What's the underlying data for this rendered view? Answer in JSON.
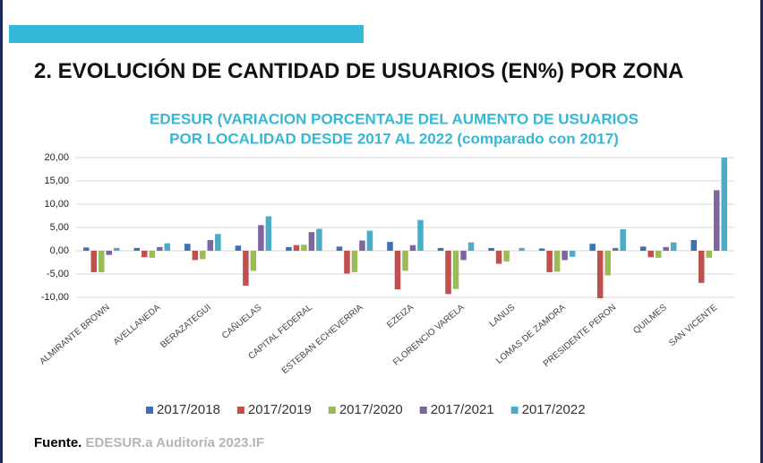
{
  "header": {
    "title": "2. EVOLUCIÓN DE CANTIDAD DE USUARIOS (EN%) POR ZONA"
  },
  "chart_data": {
    "type": "bar",
    "title_lines": [
      "EDESUR (VARIACION PORCENTAJE DEL AUMENTO DE USUARIOS",
      "POR LOCALIDAD DESDE 2017 AL 2022 (comparado con 2017)"
    ],
    "categories": [
      "ALMIRANTE BROWN",
      "AVELLANEDA",
      "BERAZATEGUI",
      "CAÑUELAS",
      "CAPITAL FEDERAL",
      "ESTEBAN ECHEVERRIA",
      "EZEIZA",
      "FLORENCIO VARELA",
      "LANUS",
      "LOMAS DE ZAMORA",
      "PRESIDENTE PERON",
      "QUILMES",
      "SAN VICENTE"
    ],
    "series": [
      {
        "name": "2017/2018",
        "color": "#3f6fb5",
        "values": [
          0.7,
          0.6,
          1.5,
          1.1,
          0.8,
          0.9,
          1.9,
          0.6,
          0.6,
          0.5,
          1.5,
          0.9,
          2.3
        ]
      },
      {
        "name": "2017/2019",
        "color": "#c0504d",
        "values": [
          -4.6,
          -1.4,
          -2.0,
          -7.5,
          1.2,
          -4.9,
          -8.3,
          -9.3,
          -2.8,
          -4.6,
          -10.2,
          -1.4,
          -6.9
        ]
      },
      {
        "name": "2017/2020",
        "color": "#9bbb59",
        "values": [
          -4.6,
          -1.5,
          -1.8,
          -4.3,
          1.3,
          -4.6,
          -4.3,
          -8.2,
          -2.3,
          -4.5,
          -5.3,
          -1.5,
          -1.5
        ]
      },
      {
        "name": "2017/2021",
        "color": "#8064a2",
        "values": [
          -0.9,
          0.8,
          2.3,
          5.5,
          4.0,
          2.2,
          1.2,
          -2.0,
          0,
          -2.0,
          0.6,
          0.8,
          13.0
        ]
      },
      {
        "name": "2017/2022",
        "color": "#4bacc6",
        "values": [
          0.6,
          1.6,
          3.6,
          7.4,
          4.7,
          4.3,
          6.6,
          1.8,
          0.6,
          -1.3,
          4.6,
          1.8,
          20
        ]
      }
    ],
    "ylim": [
      -10,
      20
    ],
    "yticks": [
      {
        "value": -10,
        "label": "-10,00"
      },
      {
        "value": -5,
        "label": "-5,00"
      },
      {
        "value": 0,
        "label": "0,00"
      },
      {
        "value": 5,
        "label": "5,00"
      },
      {
        "value": 10,
        "label": "10,00"
      },
      {
        "value": 15,
        "label": "15,00"
      },
      {
        "value": 20,
        "label": "20,00"
      }
    ],
    "grid": true,
    "legend": "bottom"
  },
  "source": {
    "label": "Fuente.",
    "text": "EDESUR.a Auditoría 2023.IF"
  }
}
